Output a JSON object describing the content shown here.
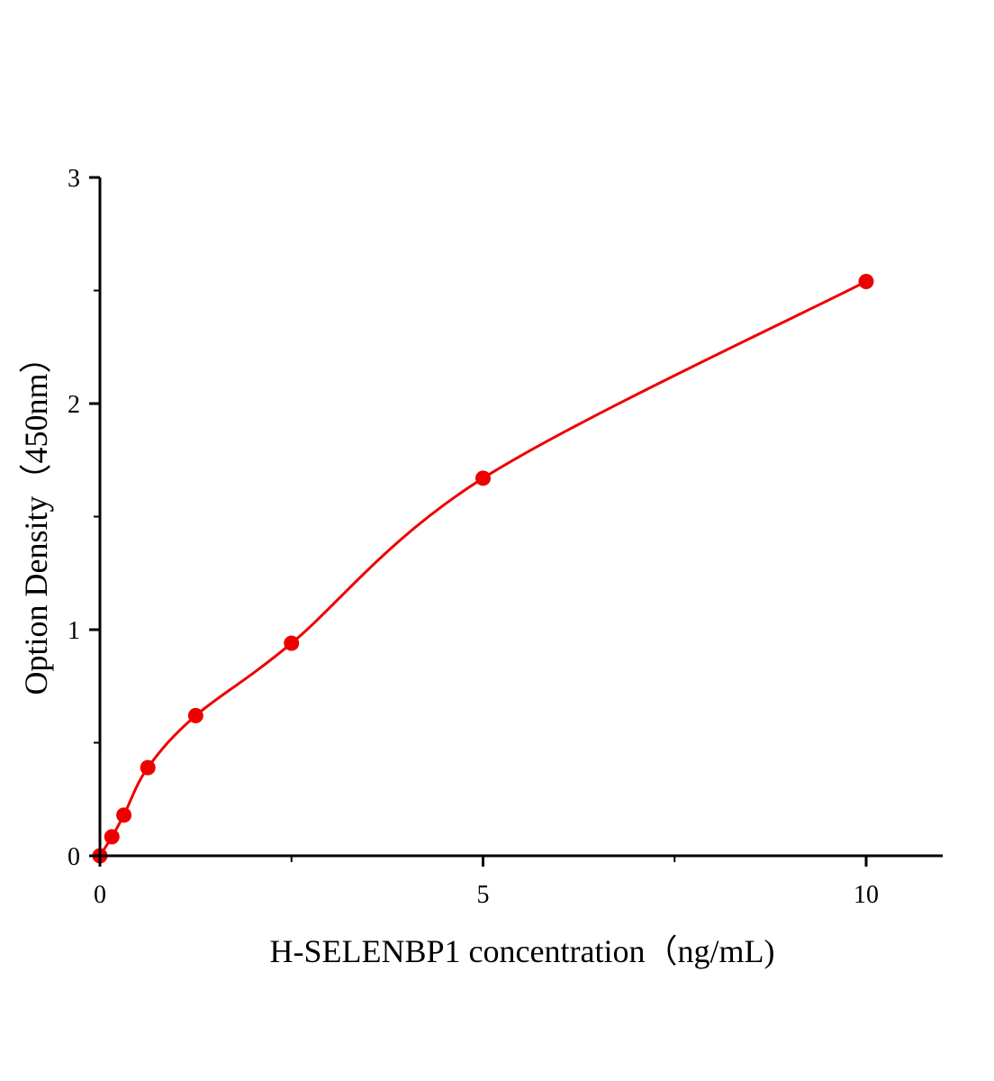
{
  "chart_data": {
    "type": "scatter",
    "title": "",
    "xlabel": "H-SELENBP1 concentration（ng/mL)",
    "ylabel": "Option Density（450nm）",
    "xlim": [
      0,
      11
    ],
    "ylim": [
      0,
      3
    ],
    "x_ticks": [
      0,
      5,
      10
    ],
    "x_tick_labels": [
      "0",
      "5",
      "10"
    ],
    "x_minor_ticks": [
      2.5,
      7.5
    ],
    "y_ticks": [
      0,
      1,
      2,
      3
    ],
    "y_tick_labels": [
      "0",
      "1",
      "2",
      "3"
    ],
    "y_minor_ticks": [
      0.5,
      1.5,
      2.5
    ],
    "grid": false,
    "series": [
      {
        "x": [
          0,
          0.156,
          0.3125,
          0.625,
          1.25,
          2.5,
          5,
          10
        ],
        "y": [
          0,
          0.084,
          0.18,
          0.39,
          0.62,
          0.94,
          1.67,
          2.54
        ],
        "color": "#ee0000",
        "fit_curve": true
      }
    ]
  }
}
